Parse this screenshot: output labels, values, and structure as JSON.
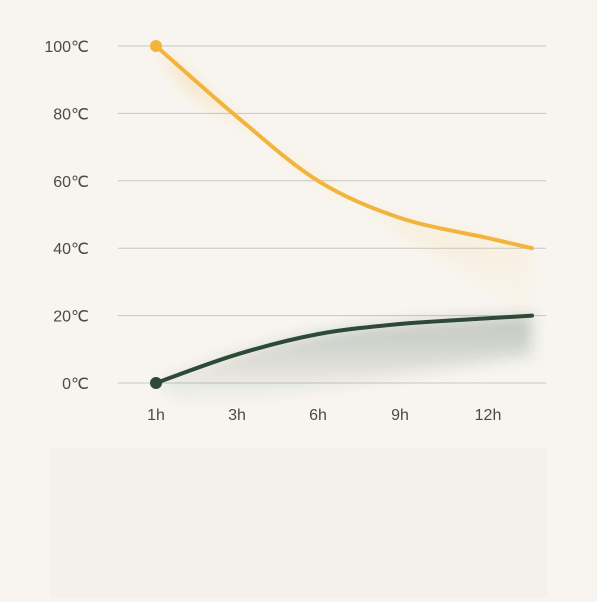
{
  "chart_data": {
    "type": "line",
    "title": "",
    "xlabel": "",
    "ylabel": "",
    "x_tick_labels": [
      "1h",
      "3h",
      "6h",
      "9h",
      "12h"
    ],
    "y_tick_labels": [
      "100℃",
      "80℃",
      "60℃",
      "40℃",
      "20℃",
      "0℃"
    ],
    "y_ticks": [
      100,
      80,
      60,
      40,
      20,
      0
    ],
    "ylim": [
      0,
      100
    ],
    "grid": true,
    "legend": "none",
    "series": [
      {
        "color": "#f2b43c",
        "x": [
          1,
          3,
          6,
          9,
          12,
          13.5
        ],
        "y": [
          100,
          79,
          60,
          49,
          43,
          40
        ]
      },
      {
        "color": "#2d4a37",
        "x": [
          1,
          3,
          6,
          9,
          12,
          13.5
        ],
        "y": [
          0,
          8.5,
          14.5,
          17.5,
          19.2,
          20
        ]
      }
    ]
  }
}
